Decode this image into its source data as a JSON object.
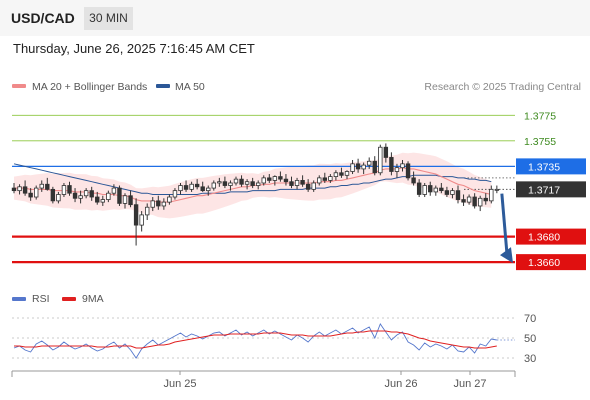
{
  "header": {
    "symbol": "USD/CAD",
    "timeframe": "30 MIN"
  },
  "datetime": "Thursday, June 26, 2025 7:16:45 AM CET",
  "legend": {
    "ma_bollinger": {
      "label": "MA 20 + Bollinger Bands",
      "color": "#f08a8a"
    },
    "ma50": {
      "label": "MA 50",
      "color": "#2b5797"
    }
  },
  "copyright": "Research © 2025 Trading Central",
  "rsi_legend": {
    "rsi": {
      "label": "RSI",
      "color": "#5577cc"
    },
    "ma9": {
      "label": "9MA",
      "color": "#e02020"
    }
  },
  "chart_data": {
    "type": "candlestick",
    "ylim": [
      1.3646,
      1.3787
    ],
    "x_ticks": [
      "Jun 25",
      "Jun 26",
      "Jun 27"
    ],
    "levels": [
      {
        "value": 1.3775,
        "label": "1.3775",
        "kind": "resistance-minor",
        "color": "#8cc63f"
      },
      {
        "value": 1.3755,
        "label": "1.3755",
        "kind": "resistance-minor",
        "color": "#8cc63f"
      },
      {
        "value": 1.3735,
        "label": "1.3735",
        "kind": "pivot",
        "color": "#1e6ee6"
      },
      {
        "value": 1.3717,
        "label": "1.3717",
        "kind": "last-price",
        "color": "#333333"
      },
      {
        "value": 1.368,
        "label": "1.3680",
        "kind": "support",
        "color": "#e01010"
      },
      {
        "value": 1.366,
        "label": "1.3660",
        "kind": "support",
        "color": "#e01010"
      }
    ],
    "candles": [
      [
        1.3718,
        1.3722,
        1.3714,
        1.3716
      ],
      [
        1.3716,
        1.3721,
        1.3713,
        1.3719
      ],
      [
        1.3719,
        1.3724,
        1.3712,
        1.3714
      ],
      [
        1.3714,
        1.3718,
        1.3708,
        1.3711
      ],
      [
        1.3711,
        1.372,
        1.3709,
        1.3718
      ],
      [
        1.3718,
        1.3724,
        1.3715,
        1.3721
      ],
      [
        1.3721,
        1.3726,
        1.3716,
        1.3717
      ],
      [
        1.3717,
        1.3719,
        1.3706,
        1.3708
      ],
      [
        1.3708,
        1.3715,
        1.3706,
        1.3713
      ],
      [
        1.3713,
        1.3722,
        1.3711,
        1.372
      ],
      [
        1.372,
        1.3723,
        1.3712,
        1.3714
      ],
      [
        1.3714,
        1.3718,
        1.3707,
        1.371
      ],
      [
        1.371,
        1.3716,
        1.3706,
        1.3712
      ],
      [
        1.3712,
        1.3718,
        1.371,
        1.3716
      ],
      [
        1.3716,
        1.3719,
        1.3708,
        1.3711
      ],
      [
        1.3711,
        1.3715,
        1.3705,
        1.3707
      ],
      [
        1.3707,
        1.3712,
        1.3704,
        1.3709
      ],
      [
        1.3709,
        1.3716,
        1.3707,
        1.3714
      ],
      [
        1.3714,
        1.3721,
        1.3712,
        1.3718
      ],
      [
        1.3718,
        1.372,
        1.3704,
        1.3706
      ],
      [
        1.3706,
        1.3714,
        1.3702,
        1.3712
      ],
      [
        1.3712,
        1.3716,
        1.3703,
        1.3705
      ],
      [
        1.3705,
        1.371,
        1.3673,
        1.3689
      ],
      [
        1.3689,
        1.37,
        1.3684,
        1.3697
      ],
      [
        1.3697,
        1.3706,
        1.3693,
        1.3703
      ],
      [
        1.3703,
        1.3711,
        1.37,
        1.3708
      ],
      [
        1.3708,
        1.3712,
        1.3701,
        1.3704
      ],
      [
        1.3704,
        1.371,
        1.3701,
        1.3707
      ],
      [
        1.3707,
        1.3713,
        1.3705,
        1.3711
      ],
      [
        1.3711,
        1.3718,
        1.3709,
        1.3716
      ],
      [
        1.3716,
        1.3722,
        1.3713,
        1.372
      ],
      [
        1.372,
        1.3724,
        1.3715,
        1.3717
      ],
      [
        1.3717,
        1.3723,
        1.3715,
        1.3721
      ],
      [
        1.3721,
        1.3725,
        1.3717,
        1.3719
      ],
      [
        1.3719,
        1.3723,
        1.3715,
        1.3716
      ],
      [
        1.3716,
        1.372,
        1.3712,
        1.3718
      ],
      [
        1.3718,
        1.3724,
        1.3716,
        1.3722
      ],
      [
        1.3722,
        1.3726,
        1.3719,
        1.3723
      ],
      [
        1.3723,
        1.3727,
        1.3718,
        1.372
      ],
      [
        1.372,
        1.3724,
        1.3716,
        1.3722
      ],
      [
        1.3722,
        1.3727,
        1.372,
        1.3725
      ],
      [
        1.3725,
        1.3728,
        1.3719,
        1.3721
      ],
      [
        1.3721,
        1.3725,
        1.3717,
        1.3723
      ],
      [
        1.3723,
        1.3726,
        1.3718,
        1.372
      ],
      [
        1.372,
        1.3724,
        1.3717,
        1.3722
      ],
      [
        1.3722,
        1.3728,
        1.372,
        1.3726
      ],
      [
        1.3726,
        1.3729,
        1.3722,
        1.3724
      ],
      [
        1.3724,
        1.3728,
        1.372,
        1.3727
      ],
      [
        1.3727,
        1.3731,
        1.3723,
        1.3725
      ],
      [
        1.3725,
        1.3729,
        1.372,
        1.3723
      ],
      [
        1.3723,
        1.3727,
        1.3718,
        1.372
      ],
      [
        1.372,
        1.3726,
        1.3717,
        1.3724
      ],
      [
        1.3724,
        1.3728,
        1.3719,
        1.3721
      ],
      [
        1.3721,
        1.3725,
        1.3715,
        1.3717
      ],
      [
        1.3717,
        1.3724,
        1.3715,
        1.3722
      ],
      [
        1.3722,
        1.3728,
        1.372,
        1.3726
      ],
      [
        1.3726,
        1.373,
        1.3722,
        1.3724
      ],
      [
        1.3724,
        1.3729,
        1.3722,
        1.3727
      ],
      [
        1.3727,
        1.3732,
        1.3724,
        1.373
      ],
      [
        1.373,
        1.3734,
        1.3726,
        1.3728
      ],
      [
        1.3728,
        1.3732,
        1.3725,
        1.3731
      ],
      [
        1.3731,
        1.374,
        1.3729,
        1.3737
      ],
      [
        1.3737,
        1.3741,
        1.373,
        1.3733
      ],
      [
        1.3733,
        1.3738,
        1.3729,
        1.3736
      ],
      [
        1.3736,
        1.3742,
        1.3733,
        1.3739
      ],
      [
        1.3739,
        1.3743,
        1.3728,
        1.373
      ],
      [
        1.373,
        1.3752,
        1.3728,
        1.375
      ],
      [
        1.375,
        1.3753,
        1.3738,
        1.3742
      ],
      [
        1.3742,
        1.3746,
        1.3728,
        1.3731
      ],
      [
        1.3731,
        1.3737,
        1.3726,
        1.3734
      ],
      [
        1.3734,
        1.374,
        1.3731,
        1.3737
      ],
      [
        1.3737,
        1.3739,
        1.3724,
        1.3726
      ],
      [
        1.3726,
        1.3731,
        1.372,
        1.3722
      ],
      [
        1.3722,
        1.3725,
        1.3711,
        1.3713
      ],
      [
        1.3713,
        1.3722,
        1.3711,
        1.372
      ],
      [
        1.372,
        1.3723,
        1.3712,
        1.3715
      ],
      [
        1.3715,
        1.372,
        1.3712,
        1.3718
      ],
      [
        1.3718,
        1.3722,
        1.3714,
        1.3716
      ],
      [
        1.3716,
        1.3719,
        1.3711,
        1.3713
      ],
      [
        1.3713,
        1.3718,
        1.371,
        1.3716
      ],
      [
        1.3716,
        1.372,
        1.3706,
        1.3709
      ],
      [
        1.3709,
        1.3713,
        1.3704,
        1.3707
      ],
      [
        1.3707,
        1.3713,
        1.3705,
        1.3711
      ],
      [
        1.3711,
        1.3714,
        1.3702,
        1.3704
      ],
      [
        1.3704,
        1.3712,
        1.37,
        1.371
      ],
      [
        1.371,
        1.3714,
        1.3705,
        1.3708
      ],
      [
        1.3708,
        1.372,
        1.3706,
        1.3717
      ],
      [
        1.3717,
        1.372,
        1.3714,
        1.3717
      ]
    ],
    "ma20": [
      1.3718,
      1.3718,
      1.3718,
      1.3717,
      1.3717,
      1.3717,
      1.3717,
      1.3716,
      1.3716,
      1.3716,
      1.3716,
      1.3715,
      1.3715,
      1.3715,
      1.3714,
      1.3714,
      1.3713,
      1.3713,
      1.3713,
      1.3712,
      1.3712,
      1.3711,
      1.3709,
      1.3708,
      1.3708,
      1.3708,
      1.3707,
      1.3707,
      1.3707,
      1.3708,
      1.3709,
      1.371,
      1.3711,
      1.3712,
      1.3712,
      1.3713,
      1.3714,
      1.3715,
      1.3716,
      1.3717,
      1.3718,
      1.3719,
      1.3719,
      1.372,
      1.372,
      1.3721,
      1.3721,
      1.3722,
      1.3722,
      1.3722,
      1.3722,
      1.3722,
      1.3722,
      1.3722,
      1.3722,
      1.3723,
      1.3723,
      1.3723,
      1.3724,
      1.3724,
      1.3725,
      1.3726,
      1.3727,
      1.3728,
      1.3729,
      1.373,
      1.3732,
      1.3733,
      1.3733,
      1.3733,
      1.3734,
      1.3733,
      1.3733,
      1.3732,
      1.3731,
      1.373,
      1.3729,
      1.3727,
      1.3725,
      1.3723,
      1.3721,
      1.372,
      1.3718,
      1.3716,
      1.3715,
      1.3714,
      1.3713
    ],
    "ma50": [
      1.3737,
      1.3736,
      1.3735,
      1.3734,
      1.3733,
      1.3732,
      1.3731,
      1.373,
      1.3729,
      1.3728,
      1.3727,
      1.3726,
      1.3725,
      1.3724,
      1.3723,
      1.3722,
      1.3721,
      1.372,
      1.3719,
      1.3718,
      1.3717,
      1.3716,
      1.3715,
      1.3714,
      1.3714,
      1.3713,
      1.3713,
      1.3713,
      1.3713,
      1.3713,
      1.3713,
      1.3713,
      1.3713,
      1.3713,
      1.3714,
      1.3714,
      1.3714,
      1.3714,
      1.3714,
      1.3715,
      1.3715,
      1.3715,
      1.3715,
      1.3716,
      1.3716,
      1.3716,
      1.3716,
      1.3716,
      1.3717,
      1.3717,
      1.3717,
      1.3717,
      1.3717,
      1.3718,
      1.3718,
      1.3718,
      1.3718,
      1.3719,
      1.3719,
      1.372,
      1.372,
      1.3721,
      1.3721,
      1.3722,
      1.3722,
      1.3723,
      1.3724,
      1.3725,
      1.3725,
      1.3726,
      1.3727,
      1.3727,
      1.3728,
      1.3728,
      1.3728,
      1.3728,
      1.3728,
      1.3727,
      1.3727,
      1.3727,
      1.3726,
      1.3726,
      1.3725,
      1.3725,
      1.3724,
      1.3724,
      1.3723
    ],
    "forecast_arrow": {
      "from": 1.3716,
      "to": 1.366
    },
    "rsi": {
      "ylim": [
        20,
        80
      ],
      "ticks": [
        70,
        50,
        30
      ],
      "rsi_values": [
        40,
        42,
        38,
        36,
        44,
        47,
        43,
        38,
        41,
        46,
        42,
        39,
        41,
        44,
        40,
        37,
        39,
        43,
        46,
        40,
        44,
        38,
        30,
        39,
        44,
        48,
        43,
        46,
        49,
        52,
        55,
        51,
        54,
        52,
        49,
        52,
        55,
        56,
        52,
        55,
        58,
        53,
        56,
        52,
        55,
        58,
        54,
        57,
        54,
        51,
        48,
        53,
        50,
        46,
        52,
        56,
        52,
        55,
        58,
        54,
        57,
        60,
        55,
        58,
        61,
        50,
        64,
        56,
        48,
        53,
        56,
        46,
        43,
        38,
        45,
        41,
        44,
        42,
        39,
        43,
        37,
        36,
        41,
        35,
        44,
        42,
        49,
        48
      ],
      "ma9_values": [
        42,
        42,
        41,
        41,
        41,
        42,
        42,
        42,
        42,
        42,
        42,
        42,
        42,
        42,
        42,
        41,
        41,
        41,
        42,
        42,
        42,
        42,
        40,
        40,
        41,
        42,
        43,
        43,
        44,
        46,
        47,
        48,
        49,
        50,
        51,
        52,
        53,
        53,
        53,
        54,
        54,
        54,
        54,
        54,
        54,
        55,
        55,
        55,
        55,
        54,
        53,
        53,
        53,
        52,
        52,
        52,
        52,
        52,
        53,
        54,
        55,
        55,
        56,
        56,
        57,
        57,
        57,
        57,
        56,
        56,
        55,
        54,
        52,
        50,
        49,
        47,
        46,
        45,
        44,
        43,
        42,
        41,
        41,
        40,
        40,
        40,
        41,
        42
      ]
    }
  }
}
